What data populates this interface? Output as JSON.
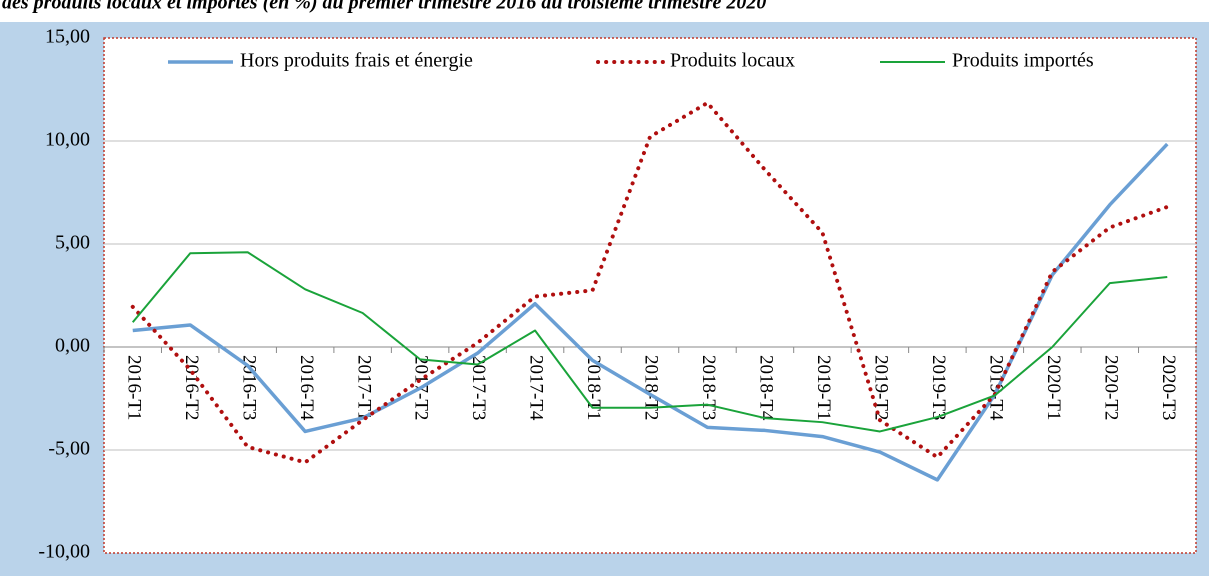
{
  "chart_data": {
    "type": "line",
    "title": "des produits locaux et importés (en %) du premier trimestre 2016 au troisième trimestre 2020",
    "categories": [
      "2016-T1",
      "2016-T2",
      "2016-T3",
      "2016-T4",
      "2017-T1",
      "2017-T2",
      "2017-T3",
      "2017-T4",
      "2018-T1",
      "2018-T2",
      "2018-T3",
      "2018-T4",
      "2019-T1",
      "2019-T2",
      "2019-T3",
      "2019-T4",
      "2020-T1",
      "2020-T2",
      "2020-T3"
    ],
    "series": [
      {
        "name": "Hors produits frais et énergie",
        "color": "#6a9fd4",
        "style": "solid",
        "values": [
          0.8,
          1.07,
          -0.9,
          -4.1,
          -3.45,
          -2.0,
          -0.3,
          2.1,
          -0.65,
          -2.3,
          -3.9,
          -4.05,
          -4.35,
          -5.1,
          -6.45,
          -2.3,
          3.5,
          6.9,
          9.85
        ]
      },
      {
        "name": "Produits locaux",
        "color": "#b00f0f",
        "style": "dotted",
        "values": [
          1.95,
          -1.1,
          -4.85,
          -5.6,
          -3.55,
          -1.6,
          0.2,
          2.45,
          2.75,
          10.2,
          11.85,
          8.6,
          5.55,
          -3.55,
          -5.35,
          -2.3,
          3.65,
          5.8,
          6.8
        ]
      },
      {
        "name": "Produits importés",
        "color": "#1aa33a",
        "style": "solid",
        "values": [
          1.2,
          4.55,
          4.6,
          2.8,
          1.65,
          -0.6,
          -0.85,
          0.8,
          -2.95,
          -2.95,
          -2.8,
          -3.45,
          -3.65,
          -4.1,
          -3.4,
          -2.35,
          0.0,
          3.1,
          3.4
        ]
      }
    ],
    "ylim": [
      -10,
      15
    ],
    "yticks": [
      {
        "value": -10,
        "label": "-10,00"
      },
      {
        "value": -5,
        "label": "-5,00"
      },
      {
        "value": 0,
        "label": "0,00"
      },
      {
        "value": 5,
        "label": "5,00"
      },
      {
        "value": 10,
        "label": "10,00"
      },
      {
        "value": 15,
        "label": "15,00"
      }
    ],
    "grid": true,
    "legend": "top"
  }
}
